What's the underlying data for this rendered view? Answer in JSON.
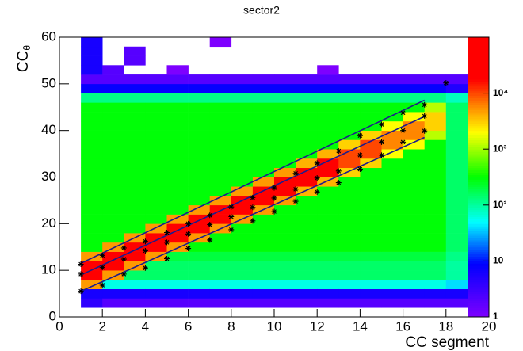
{
  "chart_data": {
    "type": "heatmap",
    "title": "sector2",
    "xlabel": "CC segment",
    "ylabel": {
      "text": "CC",
      "subscript": "θ"
    },
    "xlim": [
      0,
      20
    ],
    "xticks": [
      0,
      2,
      4,
      6,
      8,
      10,
      12,
      14,
      16,
      18,
      20
    ],
    "ylim": [
      0,
      60
    ],
    "yticks": [
      0,
      10,
      20,
      30,
      40,
      50,
      60
    ],
    "zlim": [
      1,
      100000
    ],
    "zscale": "log",
    "zticks": [
      1,
      10,
      {
        "value": 100,
        "label": "10²"
      },
      {
        "value": 1000,
        "label": "10³"
      },
      {
        "value": 10000,
        "label": "10⁴"
      }
    ],
    "palette": {
      "stops": [
        0,
        0.19,
        0.34,
        0.5,
        0.66,
        0.76,
        0.85,
        1
      ],
      "colors": [
        "#7e00ff",
        "#0000ff",
        "#00ffff",
        "#00ff00",
        "#ffff00",
        "#ff8000",
        "#ff0000",
        "#ff0000"
      ]
    },
    "x_edges": [
      1,
      2,
      3,
      4,
      5,
      6,
      7,
      8,
      9,
      10,
      11,
      12,
      13,
      14,
      15,
      16,
      17,
      18,
      19
    ],
    "y_edges": [
      0,
      2,
      4,
      6,
      8,
      10,
      12,
      14,
      16,
      18,
      20,
      22,
      24,
      26,
      28,
      30,
      32,
      34,
      36,
      38,
      40,
      42,
      44,
      46,
      48,
      50,
      52,
      54,
      56,
      58,
      60
    ],
    "z": [
      [
        0,
        4,
        6,
        5000,
        30000,
        30000,
        5000,
        300,
        300,
        300,
        300,
        300,
        300,
        300,
        300,
        300,
        300,
        300,
        300,
        300,
        300,
        300,
        300,
        120,
        8,
        2,
        6,
        6,
        6,
        6
      ],
      [
        0,
        2,
        6,
        60,
        5000,
        30000,
        30000,
        5000,
        300,
        300,
        300,
        300,
        300,
        300,
        300,
        300,
        300,
        300,
        300,
        300,
        300,
        300,
        300,
        120,
        8,
        2,
        2,
        0,
        0,
        0
      ],
      [
        0,
        2,
        6,
        60,
        150,
        5000,
        30000,
        30000,
        5000,
        300,
        300,
        300,
        300,
        300,
        300,
        300,
        300,
        300,
        300,
        300,
        300,
        300,
        300,
        120,
        8,
        2,
        0,
        2,
        2,
        0
      ],
      [
        0,
        2,
        6,
        60,
        150,
        150,
        5000,
        30000,
        30000,
        5000,
        300,
        300,
        300,
        300,
        300,
        300,
        300,
        300,
        300,
        300,
        300,
        300,
        300,
        120,
        8,
        2,
        0,
        0,
        0,
        0
      ],
      [
        0,
        2,
        6,
        60,
        150,
        150,
        200,
        5000,
        30000,
        30000,
        5000,
        300,
        300,
        300,
        300,
        300,
        300,
        300,
        300,
        300,
        300,
        300,
        300,
        120,
        8,
        2,
        1,
        0,
        0,
        0
      ],
      [
        0,
        2,
        6,
        60,
        150,
        150,
        200,
        300,
        5000,
        30000,
        30000,
        5000,
        300,
        300,
        300,
        300,
        300,
        300,
        300,
        300,
        300,
        300,
        300,
        120,
        8,
        2,
        0,
        0,
        0,
        0
      ],
      [
        0,
        2,
        6,
        60,
        150,
        150,
        200,
        300,
        300,
        5000,
        30000,
        30000,
        5000,
        300,
        300,
        300,
        300,
        300,
        300,
        300,
        300,
        300,
        300,
        120,
        8,
        2,
        0,
        0,
        0,
        1
      ],
      [
        0,
        2,
        6,
        60,
        150,
        150,
        200,
        300,
        300,
        300,
        5000,
        30000,
        30000,
        5000,
        300,
        300,
        300,
        300,
        300,
        300,
        300,
        300,
        300,
        120,
        8,
        2,
        0,
        0,
        0,
        0
      ],
      [
        0,
        2,
        6,
        60,
        150,
        150,
        200,
        300,
        300,
        300,
        300,
        5000,
        30000,
        30000,
        5000,
        300,
        300,
        300,
        300,
        300,
        300,
        300,
        300,
        120,
        8,
        2,
        0,
        0,
        0,
        0
      ],
      [
        0,
        2,
        6,
        60,
        150,
        150,
        200,
        300,
        300,
        300,
        300,
        300,
        5000,
        30000,
        30000,
        5000,
        300,
        300,
        300,
        300,
        300,
        300,
        300,
        120,
        8,
        2,
        0,
        0,
        0,
        0
      ],
      [
        0,
        2,
        6,
        60,
        150,
        150,
        200,
        300,
        300,
        300,
        300,
        300,
        300,
        4000,
        20000,
        20000,
        4000,
        300,
        300,
        300,
        300,
        300,
        300,
        120,
        8,
        2,
        0,
        0,
        0,
        0
      ],
      [
        0,
        2,
        6,
        60,
        150,
        150,
        200,
        300,
        300,
        300,
        300,
        300,
        300,
        300,
        4000,
        20000,
        20000,
        4000,
        300,
        300,
        300,
        300,
        300,
        120,
        8,
        2,
        1,
        0,
        0,
        0
      ],
      [
        0,
        2,
        6,
        60,
        150,
        150,
        200,
        300,
        300,
        300,
        300,
        300,
        300,
        300,
        300,
        3000,
        10000,
        10000,
        3000,
        300,
        300,
        300,
        300,
        120,
        8,
        2,
        0,
        0,
        0,
        0
      ],
      [
        0,
        2,
        6,
        60,
        150,
        150,
        200,
        300,
        300,
        300,
        300,
        300,
        300,
        300,
        300,
        300,
        3000,
        10000,
        10000,
        3000,
        300,
        300,
        300,
        120,
        8,
        2,
        0,
        0,
        0,
        0
      ],
      [
        0,
        2,
        6,
        60,
        150,
        150,
        200,
        300,
        300,
        300,
        300,
        300,
        300,
        300,
        300,
        300,
        300,
        2000,
        6000,
        6000,
        2000,
        300,
        300,
        120,
        8,
        2,
        0,
        0,
        0,
        0
      ],
      [
        0,
        2,
        6,
        60,
        150,
        150,
        200,
        300,
        300,
        300,
        300,
        300,
        300,
        300,
        300,
        300,
        300,
        300,
        2000,
        6000,
        6000,
        2000,
        300,
        120,
        8,
        2,
        0,
        0,
        0,
        0
      ],
      [
        0,
        2,
        6,
        60,
        150,
        150,
        200,
        300,
        300,
        300,
        300,
        300,
        300,
        300,
        300,
        300,
        300,
        300,
        300,
        1200,
        3000,
        3000,
        1200,
        120,
        8,
        2,
        0,
        0,
        0,
        0
      ],
      [
        0,
        2,
        6,
        40,
        100,
        100,
        120,
        150,
        150,
        150,
        150,
        150,
        150,
        150,
        150,
        150,
        150,
        150,
        150,
        150,
        150,
        150,
        150,
        80,
        5,
        2,
        0,
        0,
        0,
        0
      ]
    ],
    "markers": {
      "color": "#000000",
      "x": [
        1,
        2,
        3,
        4,
        5,
        6,
        7,
        8,
        9,
        10,
        11,
        12,
        13,
        14,
        15,
        16,
        17,
        18
      ],
      "series": [
        {
          "values": [
            11.3,
            13.2,
            14.8,
            16.2,
            18.1,
            20,
            21.8,
            23.6,
            25.6,
            27.7,
            30.8,
            33,
            35.6,
            38.9,
            41.3,
            43.8,
            45.5,
            50.2
          ]
        },
        {
          "values": [
            9.2,
            10.6,
            12.4,
            14.2,
            16,
            17.8,
            19.8,
            21.5,
            23.5,
            25.5,
            27.4,
            29.8,
            31.3,
            34.7,
            37.5,
            40,
            43.1,
            null
          ]
        },
        {
          "values": [
            5.5,
            6.8,
            9.2,
            10.5,
            12.5,
            14.7,
            16.5,
            18.7,
            20.6,
            22.6,
            24.8,
            26.8,
            28.8,
            31.7,
            34.7,
            37.5,
            39.9,
            null
          ]
        }
      ]
    },
    "fit_lines": {
      "color": "#1c1c8c",
      "lines": [
        {
          "x": [
            1,
            17
          ],
          "y": [
            11.5,
            46.5
          ]
        },
        {
          "x": [
            1,
            17
          ],
          "y": [
            9,
            43
          ]
        },
        {
          "x": [
            1,
            17
          ],
          "y": [
            5.5,
            38.5
          ]
        }
      ]
    }
  }
}
